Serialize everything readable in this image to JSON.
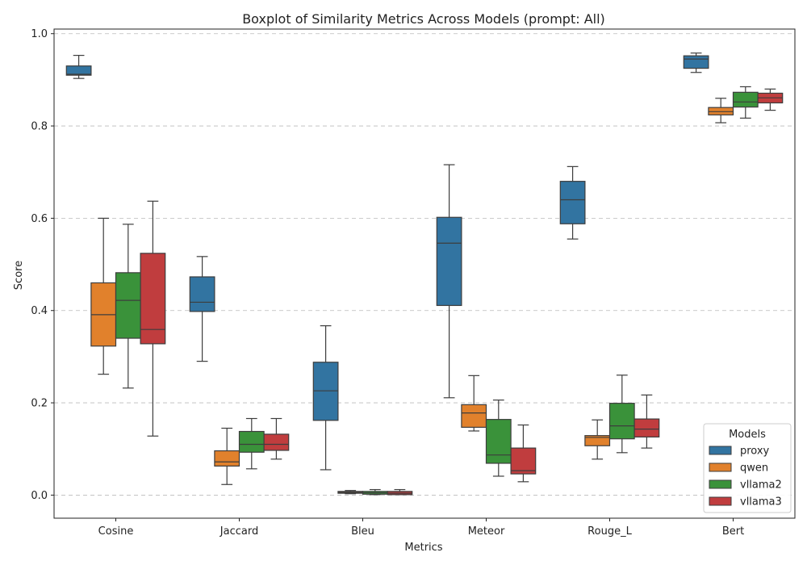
{
  "chart_data": {
    "type": "boxplot",
    "title": "Boxplot of Similarity Metrics Across Models (prompt: All)",
    "xlabel": "Metrics",
    "ylabel": "Score",
    "categories": [
      "Cosine",
      "Jaccard",
      "Bleu",
      "Meteor",
      "Rouge_L",
      "Bert"
    ],
    "ylim": [
      -0.05,
      1.01
    ],
    "yticks": [
      "0.0",
      "0.2",
      "0.4",
      "0.6",
      "0.8",
      "1.0"
    ],
    "ytick_values": [
      0.0,
      0.2,
      0.4,
      0.6,
      0.8,
      1.0
    ],
    "grid": "horizontal dashed",
    "legend": {
      "title": "Models",
      "position": "lower-right"
    },
    "series": [
      {
        "name": "proxy",
        "color": "#3274a1",
        "boxes": [
          {
            "whisker_low": 0.903,
            "q1": 0.91,
            "median": 0.912,
            "q3": 0.93,
            "whisker_high": 0.953
          },
          {
            "whisker_low": 0.29,
            "q1": 0.398,
            "median": 0.418,
            "q3": 0.473,
            "whisker_high": 0.517
          },
          {
            "whisker_low": 0.055,
            "q1": 0.162,
            "median": 0.226,
            "q3": 0.288,
            "whisker_high": 0.367
          },
          {
            "whisker_low": 0.211,
            "q1": 0.411,
            "median": 0.546,
            "q3": 0.602,
            "whisker_high": 0.716
          },
          {
            "whisker_low": 0.555,
            "q1": 0.588,
            "median": 0.64,
            "q3": 0.68,
            "whisker_high": 0.712
          },
          {
            "whisker_low": 0.916,
            "q1": 0.925,
            "median": 0.945,
            "q3": 0.952,
            "whisker_high": 0.958
          }
        ]
      },
      {
        "name": "qwen",
        "color": "#e1812c",
        "boxes": [
          {
            "whisker_low": 0.262,
            "q1": 0.323,
            "median": 0.391,
            "q3": 0.46,
            "whisker_high": 0.6
          },
          {
            "whisker_low": 0.023,
            "q1": 0.063,
            "median": 0.072,
            "q3": 0.096,
            "whisker_high": 0.145
          },
          {
            "whisker_low": 0.003,
            "q1": 0.004,
            "median": 0.006,
            "q3": 0.008,
            "whisker_high": 0.01
          },
          {
            "whisker_low": 0.139,
            "q1": 0.147,
            "median": 0.178,
            "q3": 0.196,
            "whisker_high": 0.259
          },
          {
            "whisker_low": 0.078,
            "q1": 0.107,
            "median": 0.125,
            "q3": 0.129,
            "whisker_high": 0.163
          },
          {
            "whisker_low": 0.807,
            "q1": 0.824,
            "median": 0.831,
            "q3": 0.84,
            "whisker_high": 0.86
          }
        ]
      },
      {
        "name": "vllama2",
        "color": "#3a923a",
        "boxes": [
          {
            "whisker_low": 0.232,
            "q1": 0.34,
            "median": 0.422,
            "q3": 0.482,
            "whisker_high": 0.587
          },
          {
            "whisker_low": 0.057,
            "q1": 0.093,
            "median": 0.11,
            "q3": 0.138,
            "whisker_high": 0.166
          },
          {
            "whisker_low": 0.001,
            "q1": 0.002,
            "median": 0.005,
            "q3": 0.008,
            "whisker_high": 0.012
          },
          {
            "whisker_low": 0.041,
            "q1": 0.069,
            "median": 0.087,
            "q3": 0.164,
            "whisker_high": 0.206
          },
          {
            "whisker_low": 0.092,
            "q1": 0.122,
            "median": 0.15,
            "q3": 0.199,
            "whisker_high": 0.26
          },
          {
            "whisker_low": 0.817,
            "q1": 0.841,
            "median": 0.852,
            "q3": 0.873,
            "whisker_high": 0.885
          }
        ]
      },
      {
        "name": "vllama3",
        "color": "#c03d3e",
        "boxes": [
          {
            "whisker_low": 0.128,
            "q1": 0.328,
            "median": 0.359,
            "q3": 0.524,
            "whisker_high": 0.637
          },
          {
            "whisker_low": 0.078,
            "q1": 0.097,
            "median": 0.11,
            "q3": 0.132,
            "whisker_high": 0.166
          },
          {
            "whisker_low": 0.001,
            "q1": 0.001,
            "median": 0.004,
            "q3": 0.008,
            "whisker_high": 0.012
          },
          {
            "whisker_low": 0.029,
            "q1": 0.046,
            "median": 0.053,
            "q3": 0.102,
            "whisker_high": 0.152
          },
          {
            "whisker_low": 0.102,
            "q1": 0.126,
            "median": 0.143,
            "q3": 0.165,
            "whisker_high": 0.217
          },
          {
            "whisker_low": 0.834,
            "q1": 0.85,
            "median": 0.861,
            "q3": 0.871,
            "whisker_high": 0.88
          }
        ]
      }
    ]
  }
}
